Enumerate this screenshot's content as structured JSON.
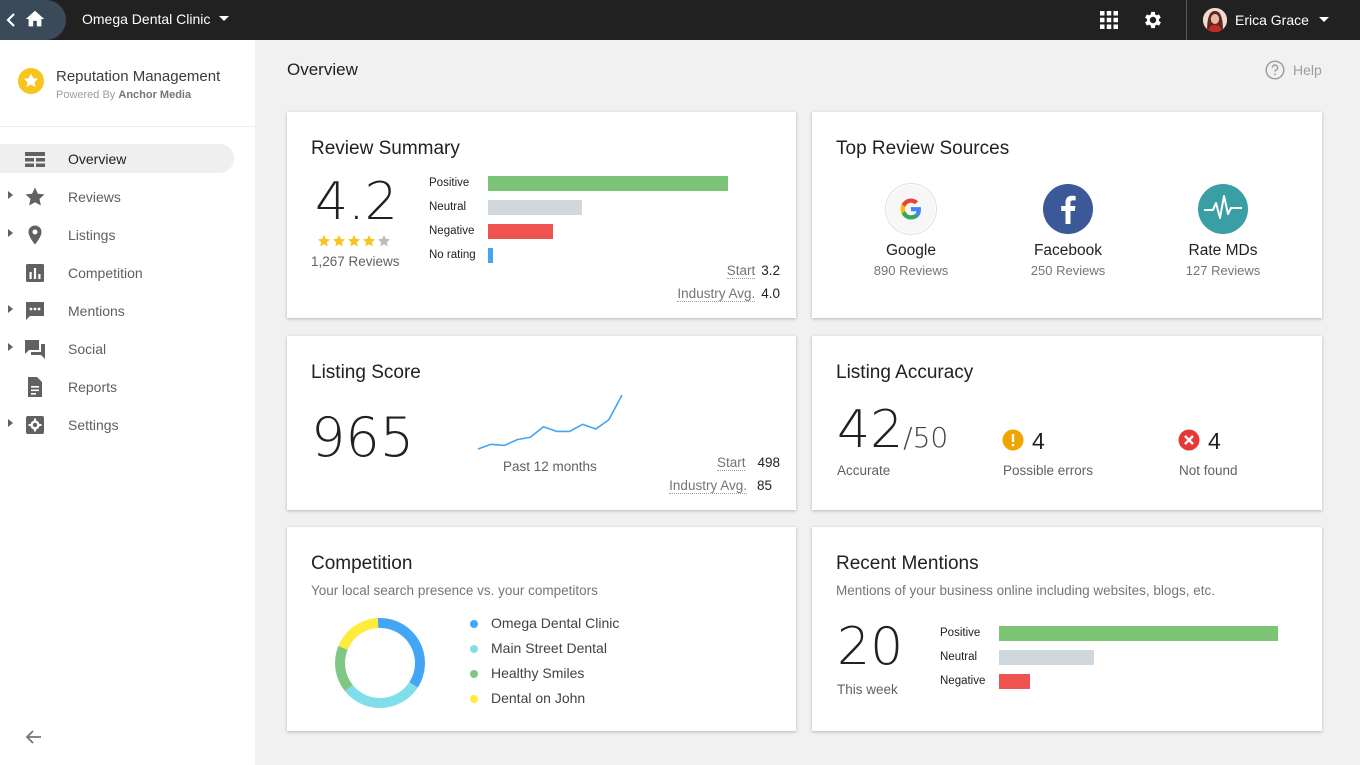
{
  "topbar": {
    "account": "Omega Dental Clinic",
    "user_name": "Erica Grace",
    "icons": [
      "back-icon",
      "home-icon",
      "apps-grid-icon",
      "gear-icon",
      "avatar"
    ]
  },
  "sidebar": {
    "brand_title": "Reputation Management",
    "brand_sub_prefix": "Powered By",
    "brand_sub_name": "Anchor Media",
    "items": [
      {
        "label": "Overview",
        "icon": "dashboard-icon",
        "expandable": false,
        "active": true
      },
      {
        "label": "Reviews",
        "icon": "star-icon",
        "expandable": true
      },
      {
        "label": "Listings",
        "icon": "location-pin-icon",
        "expandable": true
      },
      {
        "label": "Competition",
        "icon": "bar-chart-icon",
        "expandable": false
      },
      {
        "label": "Mentions",
        "icon": "chat-bubble-icon",
        "expandable": true
      },
      {
        "label": "Social",
        "icon": "forum-icon",
        "expandable": true
      },
      {
        "label": "Reports",
        "icon": "document-icon",
        "expandable": false
      },
      {
        "label": "Settings",
        "icon": "settings-box-icon",
        "expandable": true
      }
    ]
  },
  "main": {
    "title": "Overview",
    "help": "Help"
  },
  "review_summary": {
    "title": "Review Summary",
    "rating": "4.2",
    "stars_filled": 4,
    "stars_total": 5,
    "reviews": "1,267 Reviews",
    "bars": [
      {
        "label": "Positive",
        "value": 100,
        "color": "#7cc576"
      },
      {
        "label": "Neutral",
        "value": 39,
        "color": "#d0d7dd"
      },
      {
        "label": "Negative",
        "value": 27,
        "color": "#ef5350"
      },
      {
        "label": "No rating",
        "value": 2,
        "color": "#42a5f5"
      }
    ],
    "start_label": "Start",
    "start_value": "3.2",
    "industry_label": "Industry Avg.",
    "industry_value": "4.0"
  },
  "top_sources": {
    "title": "Top Review Sources",
    "sources": [
      {
        "name": "Google",
        "count": "890 Reviews",
        "icon": "google-logo-icon"
      },
      {
        "name": "Facebook",
        "count": "250 Reviews",
        "icon": "facebook-logo-icon"
      },
      {
        "name": "Rate MDs",
        "count": "127 Reviews",
        "icon": "ratemds-logo-icon"
      }
    ]
  },
  "listing_score": {
    "title": "Listing Score",
    "score": "965",
    "trend_caption": "Past 12 months",
    "trend": [
      4,
      8,
      7,
      12,
      14,
      23,
      19,
      19,
      25,
      21,
      29,
      50
    ],
    "start_label": "Start",
    "start_value": "498",
    "industry_label": "Industry Avg.",
    "industry_value": "85"
  },
  "listing_accuracy": {
    "title": "Listing Accuracy",
    "score": "42",
    "total": "/50",
    "accurate_label": "Accurate",
    "errors_value": "4",
    "errors_label": "Possible errors",
    "notfound_value": "4",
    "notfound_label": "Not found",
    "errors_color": "#f0a400",
    "notfound_color": "#e53935"
  },
  "competition": {
    "title": "Competition",
    "subtitle": "Your local search presence vs. your competitors",
    "chart_data": {
      "type": "pie",
      "labels": [
        "Omega Dental Clinic",
        "Main Street Dental",
        "Healthy Smiles",
        "Dental on John"
      ],
      "values": [
        35,
        30,
        17,
        18
      ],
      "colors": [
        "#42a5f5",
        "#80deea",
        "#81c784",
        "#ffeb3b"
      ]
    }
  },
  "recent_mentions": {
    "title": "Recent Mentions",
    "subtitle": "Mentions of your business online including websites, blogs, etc.",
    "count": "20",
    "count_label": "This week",
    "bars": [
      {
        "label": "Positive",
        "value": 100,
        "color": "#7cc576"
      },
      {
        "label": "Neutral",
        "value": 34,
        "color": "#d0d7dd"
      },
      {
        "label": "Negative",
        "value": 11,
        "color": "#ef5350"
      }
    ]
  }
}
